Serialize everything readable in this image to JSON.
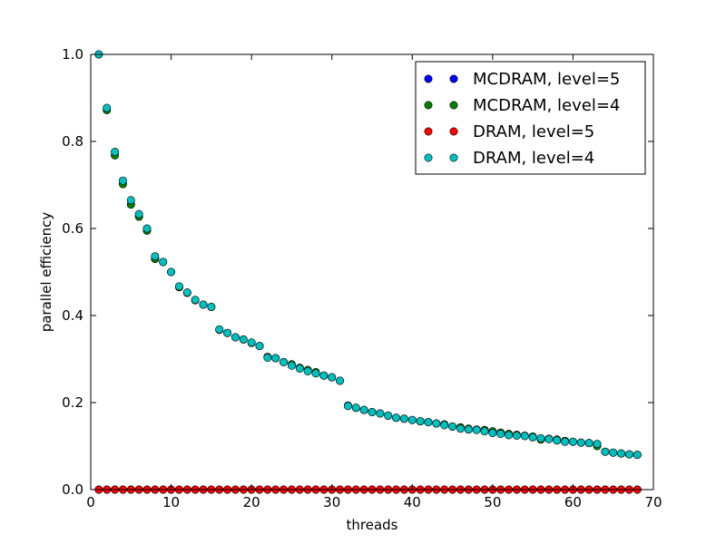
{
  "chart_data": {
    "type": "scatter",
    "title": "",
    "xlabel": "threads",
    "ylabel": "parallel efficiency",
    "xlim": [
      0,
      70
    ],
    "ylim": [
      0,
      1.0
    ],
    "xticks": [
      0,
      10,
      20,
      30,
      40,
      50,
      60,
      70
    ],
    "xtick_labels": [
      "0",
      "10",
      "20",
      "30",
      "40",
      "50",
      "60",
      "70"
    ],
    "yticks": [
      0,
      0.2,
      0.4,
      0.6,
      0.8,
      1.0
    ],
    "ytick_labels": [
      "0.0",
      "0.2",
      "0.4",
      "0.6",
      "0.8",
      "1.0"
    ],
    "grid": false,
    "legend_position": "top-right",
    "series": [
      {
        "name": "MCDRAM, level=5",
        "color": "#0000ff",
        "x": [
          1,
          2,
          3,
          4,
          5,
          6,
          7,
          8,
          9,
          10,
          11,
          12,
          13,
          14,
          15,
          16,
          17,
          18,
          19,
          20,
          21,
          22,
          23,
          24,
          25,
          26,
          27,
          28,
          29,
          30,
          31,
          32,
          33,
          34,
          35,
          36,
          37,
          38,
          39,
          40,
          41,
          42,
          43,
          44,
          45,
          46,
          47,
          48,
          49,
          50,
          51,
          52,
          53,
          54,
          55,
          56,
          57,
          58,
          59,
          60,
          61,
          62,
          63,
          64,
          65,
          66,
          67,
          68
        ],
        "y": [
          0,
          0,
          0,
          0,
          0,
          0,
          0,
          0,
          0,
          0,
          0,
          0,
          0,
          0,
          0,
          0,
          0,
          0,
          0,
          0,
          0,
          0,
          0,
          0,
          0,
          0,
          0,
          0,
          0,
          0,
          0,
          0,
          0,
          0,
          0,
          0,
          0,
          0,
          0,
          0,
          0,
          0,
          0,
          0,
          0,
          0,
          0,
          0,
          0,
          0,
          0,
          0,
          0,
          0,
          0,
          0,
          0,
          0,
          0,
          0,
          0,
          0,
          0,
          0,
          0,
          0,
          0,
          0
        ]
      },
      {
        "name": "MCDRAM, level=4",
        "color": "#008000",
        "x": [
          1,
          2,
          3,
          4,
          5,
          6,
          7,
          8,
          9,
          10,
          11,
          12,
          13,
          14,
          15,
          16,
          17,
          18,
          19,
          20,
          21,
          22,
          23,
          24,
          25,
          26,
          27,
          28,
          29,
          30,
          31,
          32,
          33,
          34,
          35,
          36,
          37,
          38,
          39,
          40,
          41,
          42,
          43,
          44,
          45,
          46,
          47,
          48,
          49,
          50,
          51,
          52,
          53,
          54,
          55,
          56,
          57,
          58,
          59,
          60,
          61,
          62,
          63,
          64,
          65,
          66,
          67,
          68
        ],
        "y": [
          1.0,
          0.872,
          0.768,
          0.702,
          0.655,
          0.627,
          0.595,
          0.53,
          0.523,
          0.5,
          0.465,
          0.452,
          0.435,
          0.425,
          0.42,
          0.367,
          0.36,
          0.35,
          0.345,
          0.337,
          0.33,
          0.305,
          0.302,
          0.293,
          0.288,
          0.28,
          0.275,
          0.27,
          0.262,
          0.258,
          0.25,
          0.193,
          0.188,
          0.183,
          0.178,
          0.175,
          0.17,
          0.165,
          0.163,
          0.16,
          0.157,
          0.155,
          0.152,
          0.15,
          0.145,
          0.143,
          0.14,
          0.138,
          0.137,
          0.134,
          0.131,
          0.128,
          0.126,
          0.124,
          0.122,
          0.115,
          0.117,
          0.115,
          0.112,
          0.11,
          0.108,
          0.107,
          0.1,
          0.087,
          0.085,
          0.083,
          0.081,
          0.08
        ]
      },
      {
        "name": "DRAM, level=5",
        "color": "#ff0000",
        "x": [
          1,
          2,
          3,
          4,
          5,
          6,
          7,
          8,
          9,
          10,
          11,
          12,
          13,
          14,
          15,
          16,
          17,
          18,
          19,
          20,
          21,
          22,
          23,
          24,
          25,
          26,
          27,
          28,
          29,
          30,
          31,
          32,
          33,
          34,
          35,
          36,
          37,
          38,
          39,
          40,
          41,
          42,
          43,
          44,
          45,
          46,
          47,
          48,
          49,
          50,
          51,
          52,
          53,
          54,
          55,
          56,
          57,
          58,
          59,
          60,
          61,
          62,
          63,
          64,
          65,
          66,
          67,
          68
        ],
        "y": [
          0,
          0,
          0,
          0,
          0,
          0,
          0,
          0,
          0,
          0,
          0,
          0,
          0,
          0,
          0,
          0,
          0,
          0,
          0,
          0,
          0,
          0,
          0,
          0,
          0,
          0,
          0,
          0,
          0,
          0,
          0,
          0,
          0,
          0,
          0,
          0,
          0,
          0,
          0,
          0,
          0,
          0,
          0,
          0,
          0,
          0,
          0,
          0,
          0,
          0,
          0,
          0,
          0,
          0,
          0,
          0,
          0,
          0,
          0,
          0,
          0,
          0,
          0,
          0,
          0,
          0,
          0,
          0
        ]
      },
      {
        "name": "DRAM, level=4",
        "color": "#00bfbf",
        "x": [
          1,
          2,
          3,
          4,
          5,
          6,
          7,
          8,
          9,
          10,
          11,
          12,
          13,
          14,
          15,
          16,
          17,
          18,
          19,
          20,
          21,
          22,
          23,
          24,
          25,
          26,
          27,
          28,
          29,
          30,
          31,
          32,
          33,
          34,
          35,
          36,
          37,
          38,
          39,
          40,
          41,
          42,
          43,
          44,
          45,
          46,
          47,
          48,
          49,
          50,
          51,
          52,
          53,
          54,
          55,
          56,
          57,
          58,
          59,
          60,
          61,
          62,
          63,
          64,
          65,
          66,
          67,
          68
        ],
        "y": [
          1.0,
          0.877,
          0.776,
          0.71,
          0.665,
          0.633,
          0.6,
          0.536,
          0.523,
          0.5,
          0.467,
          0.453,
          0.436,
          0.425,
          0.42,
          0.368,
          0.36,
          0.35,
          0.345,
          0.338,
          0.33,
          0.303,
          0.302,
          0.293,
          0.285,
          0.278,
          0.272,
          0.267,
          0.262,
          0.258,
          0.25,
          0.192,
          0.188,
          0.183,
          0.178,
          0.175,
          0.17,
          0.165,
          0.163,
          0.16,
          0.157,
          0.155,
          0.152,
          0.148,
          0.145,
          0.14,
          0.138,
          0.137,
          0.134,
          0.13,
          0.128,
          0.125,
          0.124,
          0.123,
          0.12,
          0.118,
          0.116,
          0.113,
          0.11,
          0.11,
          0.108,
          0.107,
          0.105,
          0.087,
          0.085,
          0.083,
          0.081,
          0.08
        ]
      }
    ]
  }
}
